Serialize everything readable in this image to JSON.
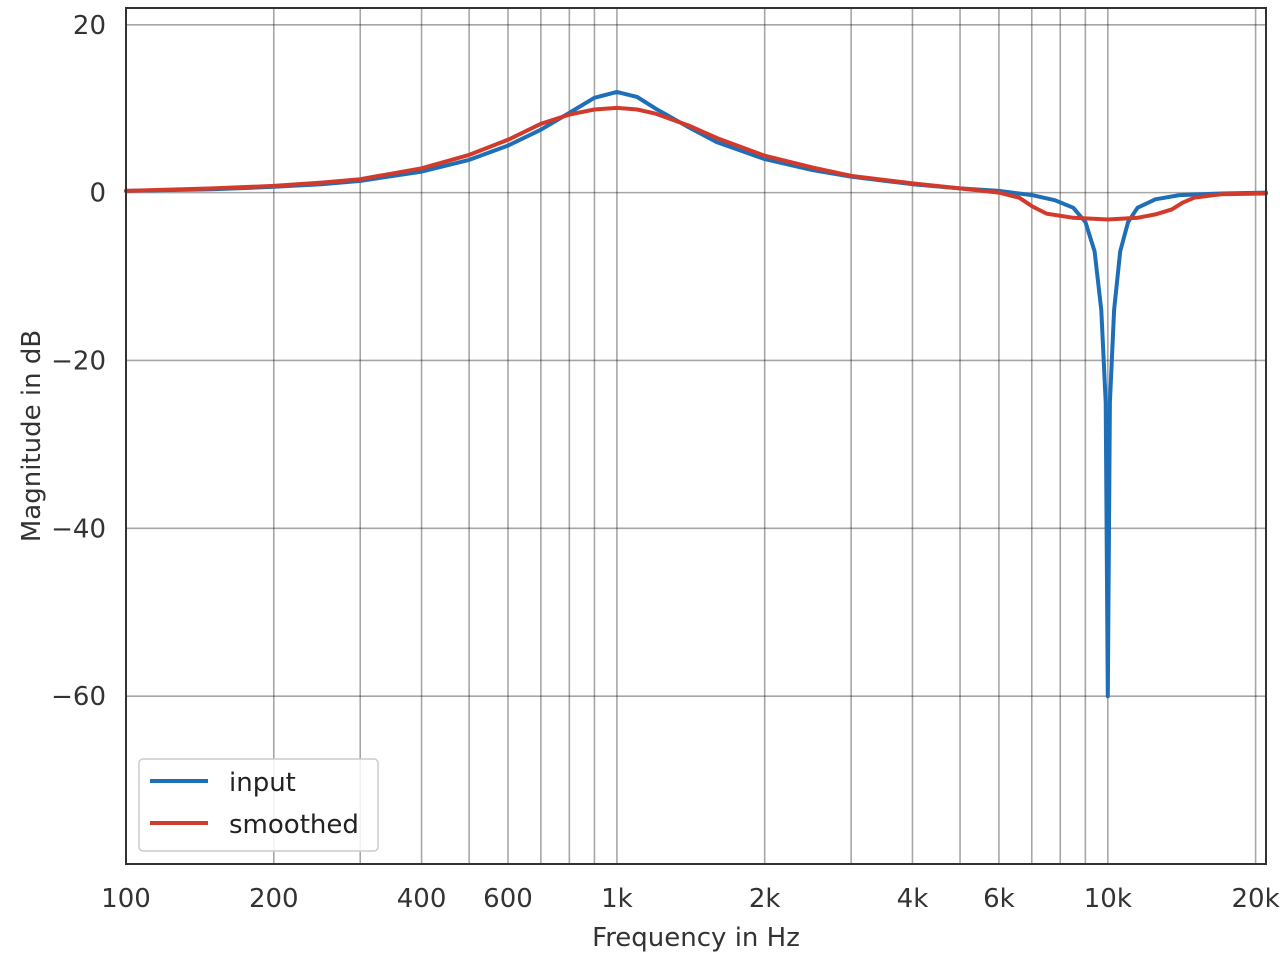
{
  "chart_data": {
    "type": "line",
    "title": "",
    "xlabel": "Frequency in Hz",
    "ylabel": "Magnitude in dB",
    "x_scale": "log",
    "xlim": [
      100,
      21000
    ],
    "ylim": [
      -80,
      22
    ],
    "grid": true,
    "legend_position": "lower-left",
    "x_major_ticks": [
      {
        "value": 100,
        "label": "100"
      },
      {
        "value": 200,
        "label": "200"
      },
      {
        "value": 400,
        "label": "400"
      },
      {
        "value": 600,
        "label": "600"
      },
      {
        "value": 1000,
        "label": "1k"
      },
      {
        "value": 2000,
        "label": "2k"
      },
      {
        "value": 4000,
        "label": "4k"
      },
      {
        "value": 6000,
        "label": "6k"
      },
      {
        "value": 10000,
        "label": "10k"
      },
      {
        "value": 20000,
        "label": "20k"
      }
    ],
    "x_grid_lines": [
      100,
      200,
      300,
      400,
      500,
      600,
      700,
      800,
      900,
      1000,
      2000,
      3000,
      4000,
      5000,
      6000,
      7000,
      8000,
      9000,
      10000,
      20000
    ],
    "y_ticks": [
      {
        "value": 20,
        "label": "20"
      },
      {
        "value": 0,
        "label": "0"
      },
      {
        "value": -20,
        "label": "−20"
      },
      {
        "value": -40,
        "label": "−40"
      },
      {
        "value": -60,
        "label": "−60"
      }
    ],
    "series": [
      {
        "name": "input",
        "color": "#1f6fb8",
        "points": [
          [
            100,
            0.2
          ],
          [
            150,
            0.4
          ],
          [
            200,
            0.7
          ],
          [
            250,
            1.0
          ],
          [
            300,
            1.4
          ],
          [
            400,
            2.5
          ],
          [
            500,
            3.9
          ],
          [
            600,
            5.6
          ],
          [
            700,
            7.5
          ],
          [
            800,
            9.5
          ],
          [
            900,
            11.3
          ],
          [
            1000,
            12.0
          ],
          [
            1100,
            11.4
          ],
          [
            1200,
            10.0
          ],
          [
            1400,
            7.8
          ],
          [
            1600,
            6.0
          ],
          [
            2000,
            4.0
          ],
          [
            2500,
            2.7
          ],
          [
            3000,
            1.9
          ],
          [
            4000,
            1.0
          ],
          [
            5000,
            0.5
          ],
          [
            6000,
            0.2
          ],
          [
            7000,
            -0.3
          ],
          [
            7800,
            -0.9
          ],
          [
            8500,
            -1.8
          ],
          [
            9000,
            -3.5
          ],
          [
            9400,
            -7.0
          ],
          [
            9700,
            -14.0
          ],
          [
            9900,
            -25.0
          ],
          [
            10000,
            -60.0
          ],
          [
            10100,
            -25.0
          ],
          [
            10300,
            -14.0
          ],
          [
            10600,
            -7.0
          ],
          [
            11000,
            -3.5
          ],
          [
            11500,
            -1.8
          ],
          [
            12500,
            -0.8
          ],
          [
            14000,
            -0.3
          ],
          [
            17000,
            -0.1
          ],
          [
            21000,
            0.0
          ]
        ]
      },
      {
        "name": "smoothed",
        "color": "#d23b2b",
        "points": [
          [
            100,
            0.2
          ],
          [
            150,
            0.5
          ],
          [
            200,
            0.8
          ],
          [
            250,
            1.2
          ],
          [
            300,
            1.6
          ],
          [
            400,
            2.9
          ],
          [
            500,
            4.5
          ],
          [
            600,
            6.3
          ],
          [
            700,
            8.2
          ],
          [
            800,
            9.3
          ],
          [
            900,
            9.9
          ],
          [
            1000,
            10.1
          ],
          [
            1100,
            9.9
          ],
          [
            1200,
            9.4
          ],
          [
            1400,
            8.0
          ],
          [
            1600,
            6.5
          ],
          [
            2000,
            4.4
          ],
          [
            2500,
            3.0
          ],
          [
            3000,
            2.0
          ],
          [
            4000,
            1.1
          ],
          [
            5000,
            0.5
          ],
          [
            6000,
            0.0
          ],
          [
            6600,
            -0.6
          ],
          [
            7000,
            -1.6
          ],
          [
            7500,
            -2.5
          ],
          [
            8500,
            -3.0
          ],
          [
            10000,
            -3.2
          ],
          [
            11500,
            -3.0
          ],
          [
            12500,
            -2.6
          ],
          [
            13500,
            -2.0
          ],
          [
            14200,
            -1.2
          ],
          [
            15000,
            -0.6
          ],
          [
            17000,
            -0.2
          ],
          [
            21000,
            -0.1
          ]
        ]
      }
    ]
  }
}
